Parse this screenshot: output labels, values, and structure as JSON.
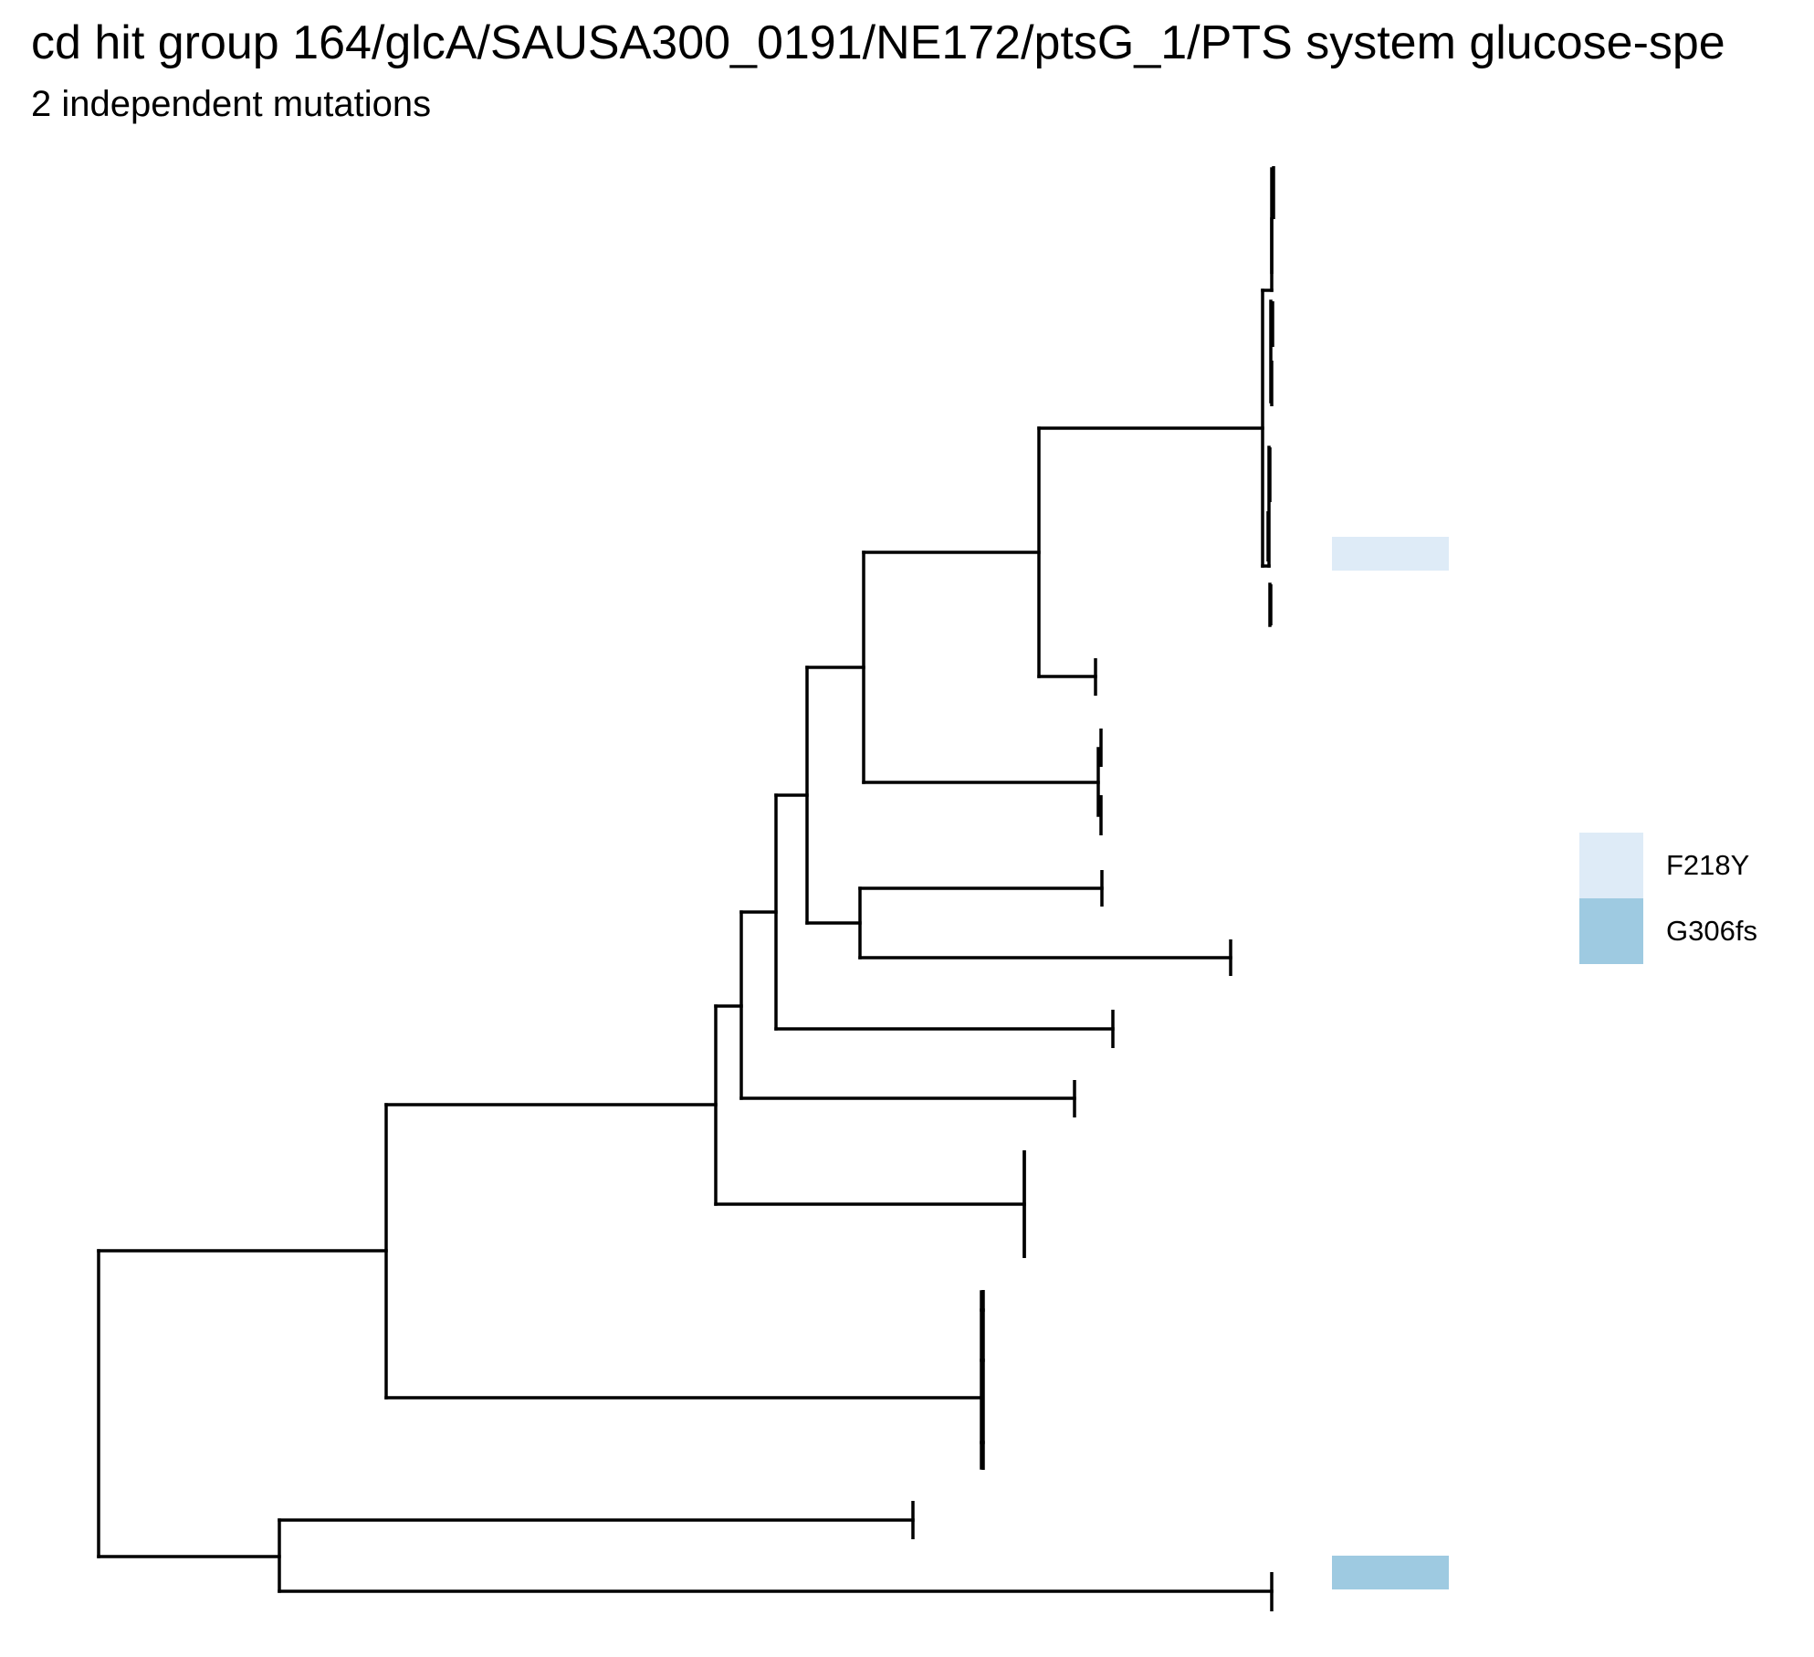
{
  "header": {
    "title": "cd hit group 164/glcA/SAUSA300_0191/NE172/ptsG_1/PTS system glucose-spe",
    "subtitle": "2 independent mutations"
  },
  "tree": {
    "line_color": "#000000",
    "tips": [
      {
        "id": "t1",
        "mutation": null
      },
      {
        "id": "t2",
        "mutation": null
      },
      {
        "id": "t3",
        "mutation": null
      },
      {
        "id": "t4",
        "mutation": null
      },
      {
        "id": "t5",
        "mutation": null
      },
      {
        "id": "t6",
        "mutation": null
      },
      {
        "id": "t7",
        "mutation": "F218Y"
      },
      {
        "id": "t8",
        "mutation": null
      },
      {
        "id": "t9",
        "mutation": null
      },
      {
        "id": "t10",
        "mutation": null
      },
      {
        "id": "t11",
        "mutation": null
      },
      {
        "id": "t12",
        "mutation": null
      },
      {
        "id": "t13",
        "mutation": null
      },
      {
        "id": "t14",
        "mutation": null
      },
      {
        "id": "t15",
        "mutation": null
      },
      {
        "id": "t16",
        "mutation": "G306fs"
      }
    ]
  },
  "legend": {
    "items": [
      {
        "label": "F218Y",
        "color": "#deebf7"
      },
      {
        "label": "G306fs",
        "color": "#9ecae1"
      }
    ]
  }
}
